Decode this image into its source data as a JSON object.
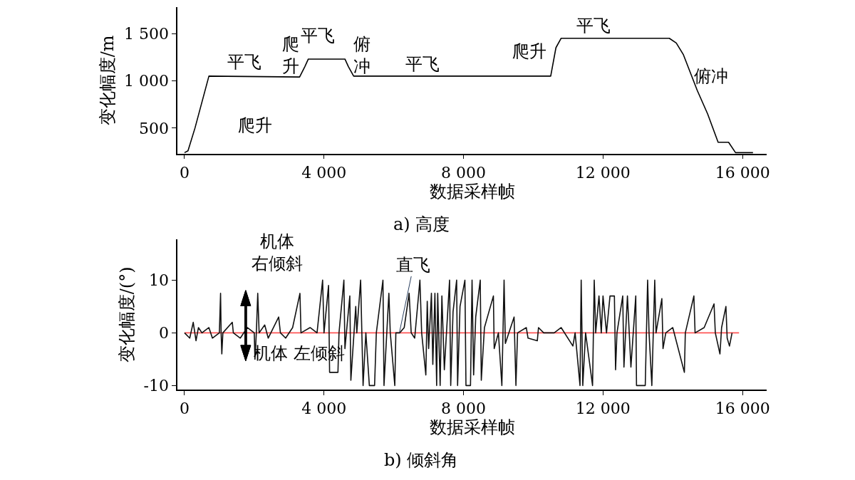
{
  "chart_data": [
    {
      "type": "line",
      "title": "a) 高度",
      "xlabel": "数据采样帧",
      "ylabel": "变化幅度/m",
      "xlim": [
        -200,
        16700
      ],
      "ylim": [
        230,
        1780
      ],
      "xticks": [
        0,
        {
          "value": 4000,
          "label": "4 000"
        },
        {
          "value": 8000,
          "label": "8 000"
        },
        {
          "value": 12000,
          "label": "12 000"
        },
        {
          "value": 16000,
          "label": "16 000"
        }
      ],
      "yticks": [
        500,
        {
          "value": 1000,
          "label": "1 000"
        },
        {
          "value": 1500,
          "label": "1 500"
        }
      ],
      "grid": false,
      "series": [
        {
          "color": "#000000",
          "x": [
            0,
            100,
            300,
            700,
            3300,
            3450,
            3550,
            4600,
            4700,
            4850,
            10500,
            10650,
            10800,
            13900,
            14100,
            14300,
            14700,
            15000,
            15300,
            15600,
            15800,
            16300
          ],
          "values": [
            240,
            260,
            500,
            1050,
            1040,
            1150,
            1230,
            1230,
            1150,
            1050,
            1050,
            1350,
            1450,
            1450,
            1400,
            1280,
            900,
            650,
            350,
            350,
            240,
            240
          ]
        }
      ],
      "annotations": [
        "平飞",
        "爬升",
        "爬升",
        "平飞",
        "俯冲",
        "平飞",
        "爬升",
        "平飞",
        "俯冲"
      ]
    },
    {
      "type": "line",
      "title": "b) 倾斜角",
      "xlabel": "数据采样帧",
      "ylabel": "变化幅度/(°)",
      "xlim": [
        -200,
        16700
      ],
      "ylim": [
        -10.8,
        17.7
      ],
      "xticks": [
        0,
        {
          "value": 4000,
          "label": "4 000"
        },
        {
          "value": 8000,
          "label": "8 000"
        },
        {
          "value": 12000,
          "label": "12 000"
        },
        {
          "value": 16000,
          "label": "16 000"
        }
      ],
      "yticks": [
        -10,
        0,
        10
      ],
      "grid": false,
      "series": [
        {
          "color": "#ff5555",
          "x": [
            0,
            15900
          ],
          "values": [
            0,
            0
          ]
        },
        {
          "color": "#111111",
          "x": [
            0,
            150,
            250,
            330,
            400,
            500,
            700,
            800,
            1000,
            1034,
            1050,
            1070,
            1100,
            1370,
            1400,
            1600,
            1800,
            2000,
            2020,
            2060,
            2100,
            2140,
            2300,
            2400,
            2700,
            2750,
            2900,
            3100,
            3310,
            3340,
            3600,
            3800,
            3960,
            4000,
            4130,
            4160,
            4400,
            4430,
            4570,
            4600,
            4740,
            4770,
            4910,
            4940,
            5050,
            5120,
            5200,
            5300,
            5450,
            5500,
            5690,
            5720,
            5860,
            5900,
            6030,
            6060,
            6170,
            6300,
            6440,
            6500,
            6600,
            6750,
            6800,
            6920,
            6960,
            7000,
            7080,
            7120,
            7180,
            7230,
            7260,
            7330,
            7380,
            7450,
            7600,
            7633,
            7700,
            7803,
            7830,
            7900,
            8040,
            8070,
            8200,
            8245,
            8290,
            8350,
            8480,
            8510,
            8600,
            8857,
            8880,
            9000,
            9100,
            9163,
            9200,
            9450,
            9503,
            9550,
            9800,
            9850,
            10116,
            10150,
            10300,
            10600,
            10800,
            11136,
            11200,
            11340,
            11374,
            11420,
            11500,
            11700,
            11748,
            11790,
            11884,
            11950,
            12000,
            12100,
            12200,
            12326,
            12360,
            12400,
            12565,
            12600,
            12700,
            12800,
            12939,
            12960,
            13100,
            13211,
            13279,
            13320,
            13400,
            13483,
            13520,
            13687,
            13720,
            13800,
            14000,
            14333,
            14360,
            14605,
            14640,
            14900,
            15183,
            15220,
            15353,
            15400,
            15524,
            15560,
            15626,
            15700
          ],
          "values": [
            0,
            -1,
            2,
            -1.5,
            1,
            0,
            1,
            -1,
            0,
            7.5,
            0,
            -4,
            0,
            2,
            0,
            -1,
            1,
            0,
            -5,
            0,
            7.5,
            0,
            1.5,
            -1,
            3,
            0,
            -1,
            1,
            7.5,
            0,
            1,
            0,
            10,
            0,
            9,
            -7.5,
            -7.5,
            0,
            10,
            -3,
            7,
            -9,
            5,
            0,
            10,
            -10,
            0,
            -10,
            -10,
            0,
            10,
            -10,
            7.5,
            0,
            -10,
            0,
            0,
            1,
            7.5,
            0,
            -1,
            10,
            0,
            -8,
            6,
            -3,
            7.5,
            -6,
            7.5,
            -10,
            7.5,
            -10,
            7,
            -7,
            10,
            -10,
            4,
            10,
            -10,
            5,
            10,
            -10,
            -10,
            10,
            -8,
            3,
            10,
            -9,
            1,
            7,
            -3,
            0,
            -10,
            10,
            -2,
            3,
            -10,
            0,
            1,
            -1,
            -1.5,
            1,
            0,
            0,
            1,
            -2.5,
            0,
            -10,
            10,
            -10,
            0,
            -10,
            10,
            0,
            7,
            0,
            7,
            0,
            7,
            7,
            -7,
            0,
            7,
            -6.5,
            7,
            -6.5,
            7,
            -10,
            -10,
            -10,
            10,
            0,
            -10,
            10,
            0,
            6.5,
            -3,
            0,
            1,
            -7.5,
            0,
            7,
            0,
            1,
            5.5,
            0,
            -4,
            1,
            5,
            -1,
            -2.5,
            0
          ]
        }
      ],
      "annotations": [
        "机体右倾斜",
        "机体 左倾斜",
        {
          "text": "直飞",
          "x": 6160,
          "y": 0
        }
      ]
    }
  ]
}
